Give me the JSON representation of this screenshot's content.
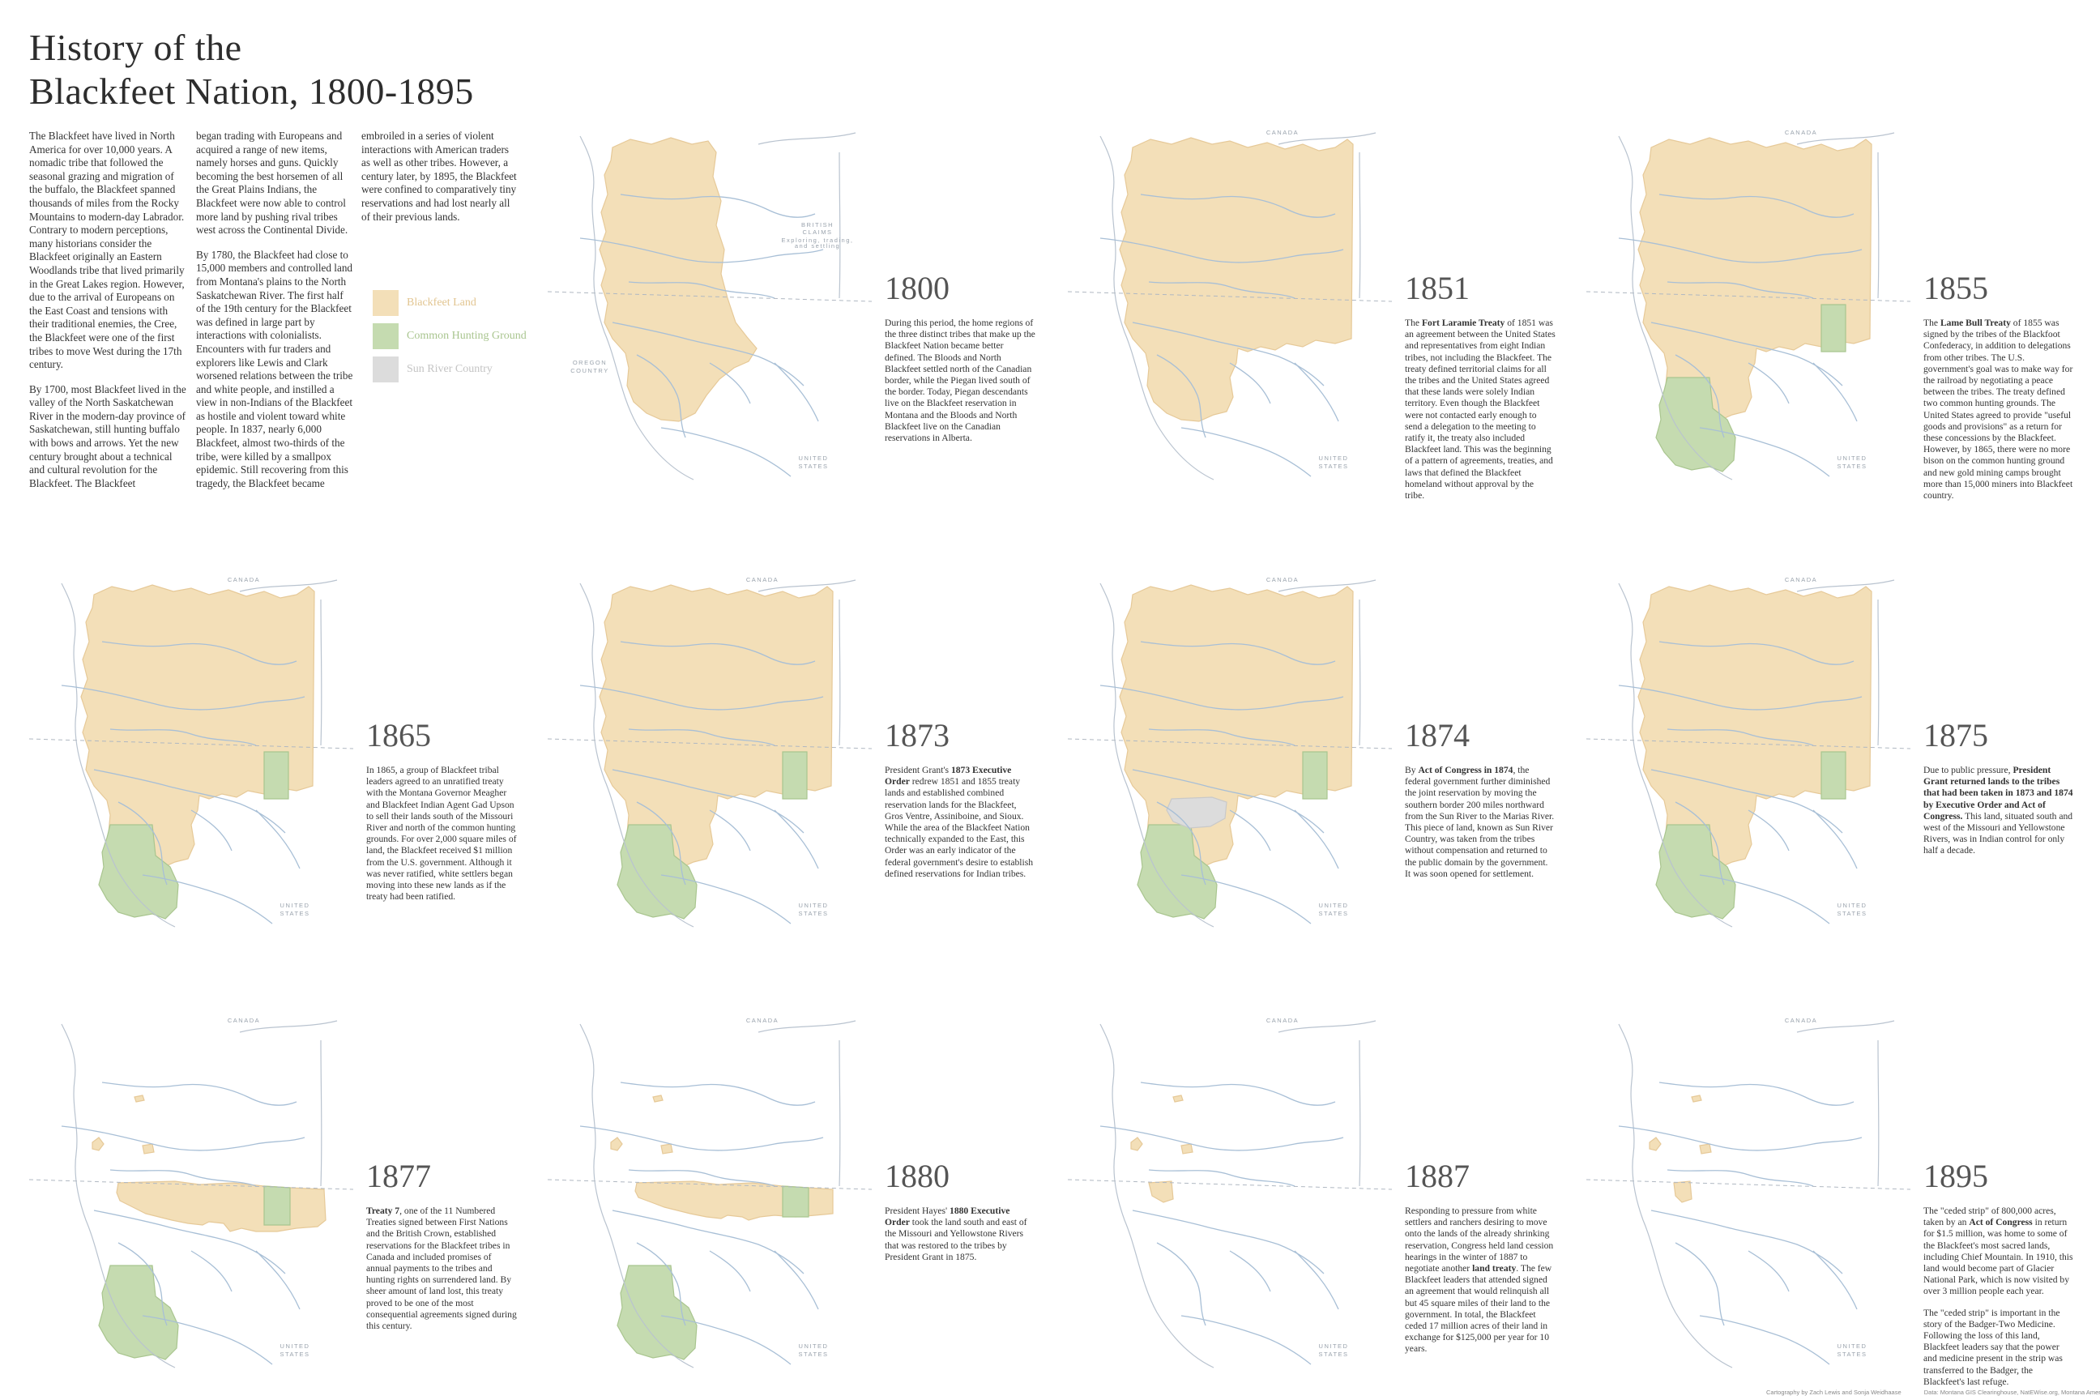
{
  "title_line1": "History of the",
  "title_line2": "Blackfeet Nation, 1800-1895",
  "colors": {
    "blackfeet_land": "#f3dfb8",
    "blackfeet_stroke": "#e6c998",
    "hunting_ground": "#c5dbb0",
    "hunting_stroke": "#a9c58f",
    "sun_river": "#dcdcdc",
    "river": "#a8bfd6",
    "outline": "#b9c3cf"
  },
  "intro": {
    "c1p1": "The Blackfeet have lived in North America for over 10,000 years. A nomadic tribe that followed the seasonal grazing and migration of the buffalo, the Blackfeet spanned thousands of miles from the Rocky Mountains to modern-day Labrador. Contrary to modern perceptions, many historians consider the Blackfeet originally an Eastern Woodlands tribe that lived primarily in the Great Lakes region. However, due to the arrival of Europeans on the East Coast and tensions with their traditional enemies, the Cree, the Blackfeet were one of the first tribes to move West during the 17th century.",
    "c1p2": "By 1700, most Blackfeet lived in the valley of the North Saskatchewan River in the modern-day province of Saskatchewan, still hunting buffalo with bows and arrows. Yet the new century brought about a technical and cultural revolution for the Blackfeet. The Blackfeet",
    "c2p1": "began trading with Europeans and acquired a range of new items, namely horses and guns. Quickly becoming the best horsemen of all the Great Plains Indians, the Blackfeet were now able to control more land by pushing rival tribes west across the Continental Divide.",
    "c2p2": "By 1780, the Blackfeet had close to 15,000 members and controlled land from Montana's plains to the North Saskatchewan River. The first half of the 19th century for the Blackfeet was defined in large part by interactions with colonialists. Encounters with fur traders and explorers like Lewis and Clark worsened relations between the tribe and white people, and instilled a view in non-Indians of the Blackfeet as hostile and violent toward white people. In 1837, nearly 6,000 Blackfeet, almost two-thirds of the tribe, were killed by a smallpox epidemic. Still recovering from this tragedy, the Blackfeet became",
    "c3p1": "embroiled in a series of violent interactions with American traders as well as other tribes. However, a century later, by 1895, the Blackfeet were confined to comparatively tiny reservations and had lost nearly all of their previous lands."
  },
  "legend": {
    "blackfeet": "Blackfeet Land",
    "hunting": "Common Hunting Ground",
    "sunriver": "Sun River Country"
  },
  "map_labels": {
    "canada": "CANADA",
    "united": "UNITED",
    "states": "STATES",
    "oregon": "OREGON",
    "country": "COUNTRY",
    "british": "BRITISH",
    "claims": "CLAIMS",
    "british_note1": "Exploring, trading,",
    "british_note2": "and settling"
  },
  "panels": [
    {
      "year": "1800",
      "variant": "1800",
      "text": [
        [
          [
            "During this period, the home regions of the three distinct tribes that make up the Blackfeet Nation became better defined. The Bloods and North Blackfeet settled north of the Canadian border, while the Piegan lived south of the border. Today, Piegan descendants live on the Blackfeet reservation in Montana and the Bloods and North Blackfeet live on the Canadian reservations in Alberta.",
            false
          ]
        ]
      ]
    },
    {
      "year": "1851",
      "variant": "1851",
      "text": [
        [
          [
            "The ",
            false
          ],
          [
            "Fort Laramie Treaty",
            true
          ],
          [
            " of 1851 was an agreement between the United States and representatives from eight Indian tribes, not including the Blackfeet. The treaty defined territorial claims for all the tribes and the United States agreed that these lands were solely Indian territory. Even though the Blackfeet were not contacted early enough to send a delegation to the meeting to ratify it, the treaty also included Blackfeet land. This was the beginning of a pattern of agreements, treaties, and laws that defined the Blackfeet homeland without approval by the tribe.",
            false
          ]
        ]
      ]
    },
    {
      "year": "1855",
      "variant": "1855",
      "text": [
        [
          [
            "The ",
            false
          ],
          [
            "Lame Bull Treaty",
            true
          ],
          [
            " of 1855 was signed by the tribes of the Blackfoot Confederacy, in addition to delegations from other tribes. The U.S. government's goal was to make way for the railroad by negotiating a peace between the tribes. The treaty defined two common hunting grounds. The United States agreed to provide \"useful goods and provisions\" as a return for these concessions by the Blackfeet. However, by 1865, there were no more bison on the common hunting ground and new gold mining camps brought more than 15,000 miners into Blackfeet country.",
            false
          ]
        ]
      ]
    },
    {
      "year": "1865",
      "variant": "1865",
      "text": [
        [
          [
            "In 1865, a group of Blackfeet tribal leaders agreed to an unratified treaty with the Montana Governor Meagher and Blackfeet Indian Agent Gad Upson to sell their lands south of the Missouri River and north of the common hunting grounds. For over 2,000 square miles of land, the Blackfeet received $1 million from the U.S. government. Although it was never ratified, white settlers began moving into these new lands as if the treaty had been ratified.",
            false
          ]
        ]
      ]
    },
    {
      "year": "1873",
      "variant": "1873",
      "text": [
        [
          [
            "President Grant's ",
            false
          ],
          [
            "1873 Executive Order",
            true
          ],
          [
            "  redrew 1851 and 1855 treaty lands and established combined reservation lands for the Blackfeet, Gros Ventre, Assiniboine, and Sioux. While the area of the Blackfeet Nation technically expanded to the East, this Order was an early indicator of the federal government's desire to establish defined reservations for Indian tribes.",
            false
          ]
        ]
      ]
    },
    {
      "year": "1874",
      "variant": "1874",
      "text": [
        [
          [
            "By ",
            false
          ],
          [
            "Act of Congress in 1874",
            true
          ],
          [
            ", the federal government further diminished the joint reservation by moving the southern border 200 miles northward from the Sun River to the Marias River. This piece of land, known as Sun River Country, was taken from the tribes without compensation and returned to the public domain by the government. It was soon opened for settlement.",
            false
          ]
        ]
      ]
    },
    {
      "year": "1875",
      "variant": "1875",
      "text": [
        [
          [
            "Due to public pressure, ",
            false
          ],
          [
            "President Grant returned lands to the tribes that had been taken in 1873 and 1874 by Executive Order and Act of Congress.",
            true
          ],
          [
            " This land, situated south and west of the Missouri and Yellowstone Rivers, was in Indian control for only half a decade.",
            false
          ]
        ]
      ]
    },
    {
      "year": "1877",
      "variant": "1877",
      "text": [
        [
          [
            "Treaty 7",
            true
          ],
          [
            ", one of the 11 Numbered Treaties signed between First Nations and the British Crown, established reservations for the Blackfeet tribes in Canada and included promises of annual payments to the tribes and hunting rights on surrendered land. By sheer amount of land lost, this treaty proved to be one of the most consequential agreements signed during this century.",
            false
          ]
        ]
      ]
    },
    {
      "year": "1880",
      "variant": "1880",
      "text": [
        [
          [
            "President Hayes' ",
            false
          ],
          [
            "1880 Executive Order",
            true
          ],
          [
            " took the land south and east of the Missouri and Yellowstone Rivers that was restored to the tribes by President Grant in 1875.",
            false
          ]
        ]
      ]
    },
    {
      "year": "1887",
      "variant": "1887",
      "text": [
        [
          [
            "Responding to pressure from white settlers and ranchers desiring to move onto the lands of the already shrinking reservation, Congress held land cession hearings in the winter of 1887 to negotiate another ",
            false
          ],
          [
            "land treaty",
            true
          ],
          [
            ". The few Blackfeet leaders that attended signed an agreement that would relinquish all but 45 square miles of their land to the government. In total, the Blackfeet ceded 17 million acres of their land in exchange for $125,000 per year for 10 years.",
            false
          ]
        ]
      ]
    },
    {
      "year": "1895",
      "variant": "1895",
      "text": [
        [
          [
            "The \"ceded strip\" of 800,000 acres, taken by an ",
            false
          ],
          [
            "Act of Congress",
            true
          ],
          [
            " in return for $1.5 million, was home to some of the Blackfeet's most sacred lands, including Chief Mountain. In 1910, this land would become part of Glacier National Park, which is now visited by over 3 million people each year.",
            false
          ]
        ],
        [
          [
            "The \"ceded strip\" is important in the story of the Badger-Two Medicine. Following the loss of this land, Blackfeet leaders say that the power and medicine present in the strip was transferred to the Badger, the Blackfeet's last refuge.",
            false
          ]
        ]
      ]
    }
  ],
  "credits": {
    "a": "Cartography by Zach Lewis and Sonja Weidhaase",
    "b": "Data: Montana GIS Clearinghouse, NatEWise.org, Montana American Indian Council"
  }
}
